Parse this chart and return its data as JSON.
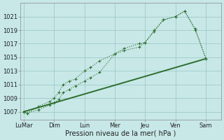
{
  "background_color": "#c8e8e8",
  "grid_color": "#a0c8c8",
  "line_color": "#2d6e2d",
  "xlabel": "Pression niveau de la mer( hPa )",
  "ylim": [
    1005.8,
    1023.0
  ],
  "yticks": [
    1007,
    1009,
    1011,
    1013,
    1015,
    1017,
    1019,
    1021
  ],
  "x_labels": [
    "LuMar",
    "Dim",
    "Lun",
    "Mer",
    "Jeu",
    "Ven",
    "Sam"
  ],
  "x_positions": [
    0,
    1,
    2,
    3,
    4,
    5,
    6
  ],
  "xlim": [
    -0.1,
    6.5
  ],
  "line1_x": [
    0.0,
    0.12,
    0.5,
    0.85,
    1.0,
    1.15,
    1.3,
    1.5,
    1.7,
    2.0,
    2.2,
    2.5,
    3.0,
    3.3,
    3.8,
    4.0,
    4.3,
    4.6,
    5.0,
    5.3,
    5.65,
    6.0
  ],
  "line1_y": [
    1007.0,
    1006.8,
    1007.3,
    1008.0,
    1008.3,
    1008.8,
    1009.8,
    1010.3,
    1010.8,
    1011.5,
    1012.0,
    1012.8,
    1015.5,
    1016.0,
    1016.5,
    1017.2,
    1018.8,
    1020.5,
    1021.0,
    1021.8,
    1019.0,
    1014.8
  ],
  "line2_x": [
    0.0,
    0.12,
    0.5,
    0.85,
    1.0,
    1.15,
    1.3,
    1.5,
    1.7,
    2.0,
    2.2,
    2.5,
    3.0,
    3.3,
    3.8,
    4.0,
    4.3,
    4.6,
    5.0,
    5.3,
    5.65,
    6.0
  ],
  "line2_y": [
    1007.0,
    1006.8,
    1007.8,
    1008.5,
    1009.0,
    1009.8,
    1011.0,
    1011.5,
    1011.8,
    1013.0,
    1013.5,
    1014.5,
    1015.5,
    1016.3,
    1017.0,
    1017.2,
    1019.0,
    1020.5,
    1021.0,
    1021.8,
    1019.2,
    1014.8
  ],
  "line3_x": [
    0.0,
    6.0
  ],
  "line3_y": [
    1007.0,
    1014.8
  ]
}
